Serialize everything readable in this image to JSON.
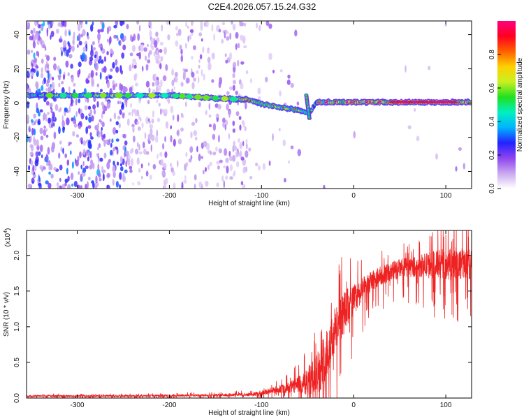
{
  "page": {
    "title": "C2E4.2026.057.15.24.G32"
  },
  "chart_data": [
    {
      "type": "heatmap",
      "title": "C2E4.2026.057.15.24.G32",
      "xlabel": "Height of straight line (km)",
      "ylabel": "Frequency (Hz)",
      "xlim": [
        -355,
        128
      ],
      "ylim": [
        -50,
        48
      ],
      "xticks": [
        -300,
        -200,
        -100,
        0,
        100
      ],
      "yticks": [
        -40,
        -20,
        0,
        20,
        40
      ],
      "ridge": {
        "description_points_x": [
          -340,
          -300,
          -250,
          -200,
          -170,
          -140,
          -115,
          -100,
          -80,
          -60,
          -48,
          -40,
          -20,
          0,
          40,
          80,
          125
        ],
        "description_points_y": [
          4.5,
          4.5,
          4.5,
          4.5,
          3.5,
          2.5,
          2.0,
          -0.5,
          -2.5,
          -4.0,
          -6.0,
          0.5,
          0.5,
          0.5,
          0.5,
          0.5,
          0.5
        ]
      },
      "colorbar": {
        "label": "Normalized spectral amplitude",
        "ticks": [
          0.0,
          0.2,
          0.4,
          0.6,
          0.8
        ],
        "range": [
          0,
          1
        ],
        "colors": [
          "#ffffff",
          "#c9a8f0",
          "#8e44f0",
          "#2222ff",
          "#00b4ff",
          "#00f0c0",
          "#20e020",
          "#c8f020",
          "#ffd000",
          "#ff6000",
          "#ff0020",
          "#ff0080"
        ]
      }
    },
    {
      "type": "line",
      "xlabel": "Height of straight line (km)",
      "ylabel": "SNR (10 * v/v)",
      "exponent_label": "(x10",
      "exponent_power": "4",
      "exponent_close": ")",
      "xlim": [
        -355,
        128
      ],
      "ylim": [
        0,
        2.35
      ],
      "xticks": [
        -300,
        -200,
        -100,
        0,
        100
      ],
      "yticks": [
        0.0,
        0.5,
        1.0,
        1.5,
        2.0
      ],
      "ytick_labels": [
        "0.0",
        "0.5",
        "1.0",
        "1.5",
        "2.0"
      ],
      "color": "#ee2222",
      "envelope": {
        "x": [
          -355,
          -250,
          -150,
          -110,
          -90,
          -70,
          -55,
          -45,
          -35,
          -25,
          -15,
          -5,
          5,
          15,
          30,
          50,
          70,
          90,
          110,
          128
        ],
        "baseline": [
          0.03,
          0.03,
          0.04,
          0.05,
          0.1,
          0.15,
          0.2,
          0.25,
          0.45,
          0.8,
          1.1,
          1.3,
          1.45,
          1.6,
          1.72,
          1.82,
          1.85,
          1.87,
          1.88,
          1.88
        ],
        "spread": [
          0.02,
          0.02,
          0.03,
          0.04,
          0.08,
          0.12,
          0.25,
          0.45,
          0.55,
          0.6,
          0.55,
          0.45,
          0.3,
          0.25,
          0.22,
          0.22,
          0.25,
          0.35,
          0.4,
          0.35
        ]
      }
    }
  ]
}
